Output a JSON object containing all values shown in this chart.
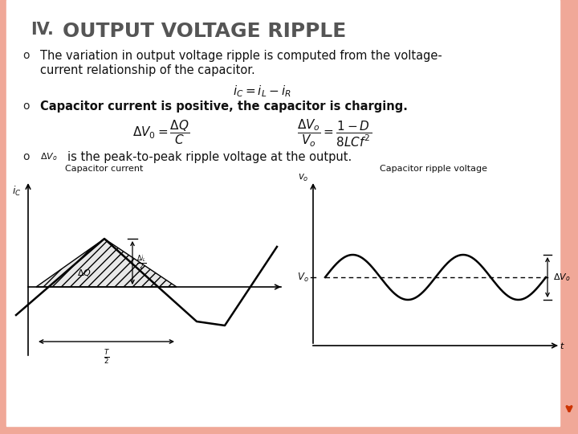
{
  "title_roman": "IV.",
  "title_text": "Output Voltage Ripple",
  "title_color": "#666666",
  "title_fontsize": 20,
  "bg_main": "#FFFFFF",
  "bg_slide": "#FFFFFF",
  "border_right_color": "#F0A898",
  "border_bottom_color": "#F0A898",
  "bullet_char": "o",
  "bullet1_line1": "The variation in output voltage ripple is computed from the voltage-",
  "bullet1_line2": "current relationship of the capacitor.",
  "formula1": "$i_C = i_L - i_R$",
  "bullet2": "Capacitor current is positive, the capacitor is charging.",
  "bullet3_super": "$\\Delta V_o$",
  "bullet3_text": "is the peak-to-peak ripple voltage at the output.",
  "diagram_left_label": "Capacitor current",
  "diagram_right_label": "Capacitor ripple voltage",
  "arrow_color": "#CC3300",
  "text_color": "#000000",
  "diagram_linewidth": 1.8
}
